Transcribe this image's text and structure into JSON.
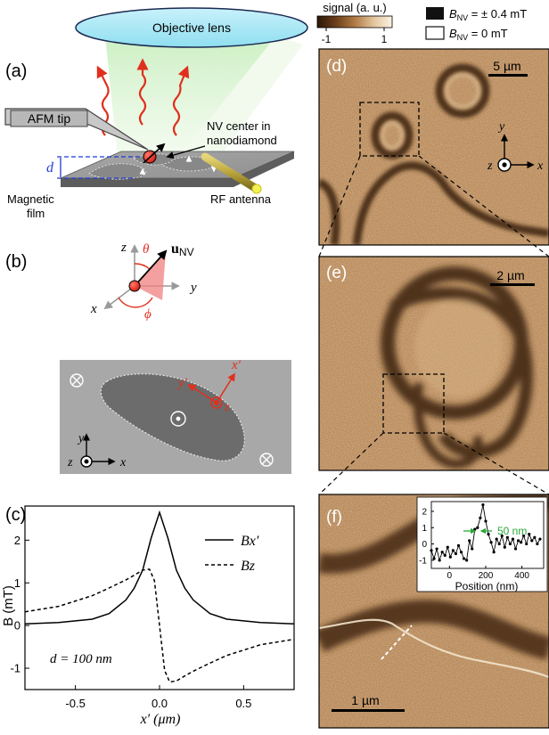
{
  "panel_a": {
    "panel_label": "(a)",
    "objective_label": "Objective lens",
    "afm_tip_label": "AFM tip",
    "nv_label_line1": "NV center in",
    "nv_label_line2": "nanodiamond",
    "d_label": "d",
    "film_label_line1": "Magnetic",
    "film_label_line2": "film",
    "antenna_label": "RF antenna"
  },
  "panel_b": {
    "panel_label": "(b)",
    "axis_z": "z",
    "axis_y": "y",
    "axis_x": "x",
    "theta": "θ",
    "phi": "ϕ",
    "unv": "u",
    "unv_sub": "NV",
    "frame_xp": "x′",
    "frame_yp": "y′",
    "frame_z": "z",
    "lab_x": "x",
    "lab_y": "y",
    "lab_z": "z"
  },
  "panel_c": {
    "panel_label": "(c)",
    "annotation": "d = 100 nm",
    "chart_data": {
      "type": "line",
      "xlabel": "x′ (μm)",
      "ylabel": "B (mT)",
      "xlim": [
        -0.8,
        0.8
      ],
      "ylim": [
        -1.5,
        2.8
      ],
      "xticks": [
        -0.5,
        0,
        0.5
      ],
      "xtick_labels": [
        "-0.5",
        "0.0",
        "0.5"
      ],
      "yticks": [
        -1,
        0,
        1,
        2
      ],
      "ytick_labels": [
        "-1",
        "0",
        "1",
        "2"
      ],
      "legend_position": "top-right",
      "series": [
        {
          "name": "Bx′",
          "style": "solid",
          "x": [
            -0.8,
            -0.6,
            -0.4,
            -0.3,
            -0.2,
            -0.15,
            -0.1,
            -0.05,
            0.0,
            0.05,
            0.1,
            0.15,
            0.2,
            0.3,
            0.4,
            0.6,
            0.8
          ],
          "y": [
            0.04,
            0.07,
            0.15,
            0.28,
            0.6,
            0.88,
            1.3,
            2.05,
            2.65,
            2.05,
            1.3,
            0.88,
            0.6,
            0.28,
            0.15,
            0.07,
            0.04
          ]
        },
        {
          "name": "Bz",
          "style": "dashed",
          "x": [
            -0.8,
            -0.6,
            -0.4,
            -0.3,
            -0.2,
            -0.15,
            -0.1,
            -0.06,
            -0.03,
            0.0,
            0.03,
            0.06,
            0.1,
            0.15,
            0.2,
            0.3,
            0.4,
            0.6,
            0.8
          ],
          "y": [
            0.32,
            0.45,
            0.7,
            0.88,
            1.07,
            1.18,
            1.3,
            1.32,
            1.05,
            0.0,
            -1.05,
            -1.32,
            -1.3,
            -1.18,
            -1.07,
            -0.88,
            -0.7,
            -0.45,
            -0.32
          ]
        }
      ]
    }
  },
  "colorbar": {
    "label": "signal (a. u.)",
    "min_label": "-1",
    "max_label": "1",
    "colors": [
      "#2a1708",
      "#6b3f1a",
      "#b07a45",
      "#e3c49c",
      "#fbf3e6"
    ]
  },
  "legend_b": {
    "item1_prefix": "B",
    "item1_sub": "NV",
    "item1_value": " = ± 0.4 mT",
    "item2_prefix": "B",
    "item2_sub": "NV",
    "item2_value": " = 0 mT"
  },
  "panel_d": {
    "panel_label": "(d)",
    "scale_bar": "5 µm",
    "axis_x": "x",
    "axis_y": "y",
    "axis_z": "z"
  },
  "panel_e": {
    "panel_label": "(e)",
    "scale_bar": "2 µm"
  },
  "panel_f": {
    "panel_label": "(f)",
    "scale_bar": "1 µm",
    "inset": {
      "width_label": "50 nm",
      "chart_data": {
        "type": "line",
        "xlabel": "Position (nm)",
        "xlim": [
          -100,
          520
        ],
        "ylim": [
          -1.5,
          2.6
        ],
        "xticks": [
          0,
          200,
          400
        ],
        "xtick_labels": [
          "0",
          "200",
          "400"
        ],
        "yticks": [
          -1,
          0,
          1,
          2
        ],
        "ytick_labels": [
          "-1",
          "0",
          "1",
          "2"
        ],
        "series": [
          {
            "x": [
              -100,
              -85,
              -70,
              -55,
              -40,
              -25,
              -10,
              5,
              20,
              35,
              50,
              65,
              80,
              95,
              110,
              125,
              140,
              155,
              170,
              185,
              200,
              215,
              230,
              245,
              260,
              275,
              290,
              305,
              320,
              335,
              350,
              365,
              380,
              395,
              410,
              425,
              440,
              455,
              470,
              485,
              500
            ],
            "y": [
              -0.4,
              -0.9,
              -0.3,
              -1.0,
              -0.5,
              -0.7,
              -0.2,
              -0.8,
              -0.4,
              -0.6,
              -0.1,
              -0.5,
              -0.9,
              -1.0,
              0.2,
              -0.3,
              0.9,
              1.0,
              1.6,
              2.4,
              1.4,
              0.6,
              0.1,
              -0.5,
              0.3,
              0.0,
              0.5,
              -0.2,
              0.4,
              0.0,
              0.3,
              -0.3,
              0.2,
              0.1,
              0.5,
              0.0,
              0.6,
              0.2,
              0.4,
              0.0,
              0.3
            ]
          }
        ]
      }
    }
  }
}
